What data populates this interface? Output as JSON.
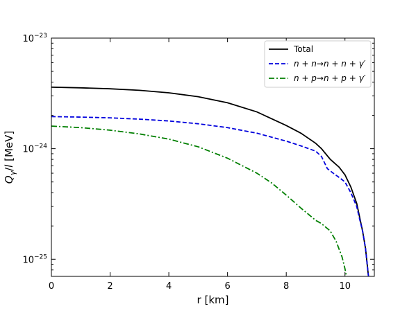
{
  "chart_data": {
    "type": "line",
    "title": "",
    "xlabel": "r [km]",
    "ylabel": "Q_γ/l [MeV]",
    "xlim": [
      0,
      11
    ],
    "ylim": [
      7e-26,
      1e-23
    ],
    "yscale": "log",
    "xticks": [
      0,
      2,
      4,
      6,
      8,
      10
    ],
    "xtick_labels": [
      "0",
      "2",
      "4",
      "6",
      "8",
      "10"
    ],
    "yticks": [
      1e-25,
      1e-24,
      1e-23
    ],
    "ytick_labels": [
      {
        "base": "10",
        "exp": "−25"
      },
      {
        "base": "10",
        "exp": "−24"
      },
      {
        "base": "10",
        "exp": "−23"
      }
    ],
    "grid": false,
    "legend_position": "top-right",
    "series": [
      {
        "name": "Total",
        "color": "#000000",
        "dash": "solid",
        "x": [
          0,
          1,
          2,
          3,
          4,
          5,
          6,
          7,
          8,
          8.5,
          9,
          9.2,
          9.5,
          9.8,
          10.0,
          10.2,
          10.4,
          10.5,
          10.6,
          10.7,
          10.8
        ],
        "y": [
          3.6e-24,
          3.55e-24,
          3.48e-24,
          3.37e-24,
          3.2e-24,
          2.95e-24,
          2.6e-24,
          2.15e-24,
          1.62e-24,
          1.38e-24,
          1.12e-24,
          1e-24,
          8e-25,
          6.8e-25,
          5.8e-25,
          4.5e-25,
          3.2e-25,
          2.4e-25,
          1.8e-25,
          1.25e-25,
          7e-26
        ]
      },
      {
        "name": "n+n→n+n+γ′",
        "label_parts": [
          {
            "t": "n",
            "i": true
          },
          {
            "t": " + ",
            "i": false
          },
          {
            "t": "n",
            "i": true
          },
          {
            "t": "→",
            "i": false
          },
          {
            "t": "n",
            "i": true
          },
          {
            "t": " + ",
            "i": false
          },
          {
            "t": "n",
            "i": true
          },
          {
            "t": " + ",
            "i": false
          },
          {
            "t": "γ′",
            "i": true
          }
        ],
        "color": "#0000dd",
        "dash": "dashed",
        "x": [
          0,
          1,
          2,
          3,
          4,
          5,
          6,
          7,
          8,
          8.5,
          9,
          9.2,
          9.4,
          9.6,
          9.8,
          10.0,
          10.2,
          10.4,
          10.5,
          10.6,
          10.7,
          10.8
        ],
        "y": [
          1.95e-24,
          1.93e-24,
          1.9e-24,
          1.85e-24,
          1.78e-24,
          1.68e-24,
          1.55e-24,
          1.38e-24,
          1.17e-24,
          1.06e-24,
          9.5e-25,
          8.5e-25,
          6.6e-25,
          6e-25,
          5.5e-25,
          5e-25,
          4e-25,
          3e-25,
          2.3e-25,
          1.8e-25,
          1.25e-25,
          7e-26
        ]
      },
      {
        "name": "n+p→n+p+γ′",
        "label_parts": [
          {
            "t": "n",
            "i": true
          },
          {
            "t": " + ",
            "i": false
          },
          {
            "t": "p",
            "i": true
          },
          {
            "t": "→",
            "i": false
          },
          {
            "t": "n",
            "i": true
          },
          {
            "t": " + ",
            "i": false
          },
          {
            "t": "p",
            "i": true
          },
          {
            "t": " + ",
            "i": false
          },
          {
            "t": "γ′",
            "i": true
          }
        ],
        "color": "#007f00",
        "dash": "dashdot",
        "x": [
          0,
          1,
          2,
          3,
          4,
          5,
          6,
          7,
          7.5,
          8,
          8.5,
          9,
          9.2,
          9.5,
          9.7,
          9.9,
          10.0,
          10.05
        ],
        "y": [
          1.6e-24,
          1.55e-24,
          1.47e-24,
          1.36e-24,
          1.22e-24,
          1.04e-24,
          8.2e-25,
          6e-25,
          4.9e-25,
          3.8e-25,
          2.9e-25,
          2.25e-25,
          2.1e-25,
          1.8e-25,
          1.45e-25,
          1.05e-25,
          8.2e-26,
          7e-26
        ]
      }
    ]
  }
}
